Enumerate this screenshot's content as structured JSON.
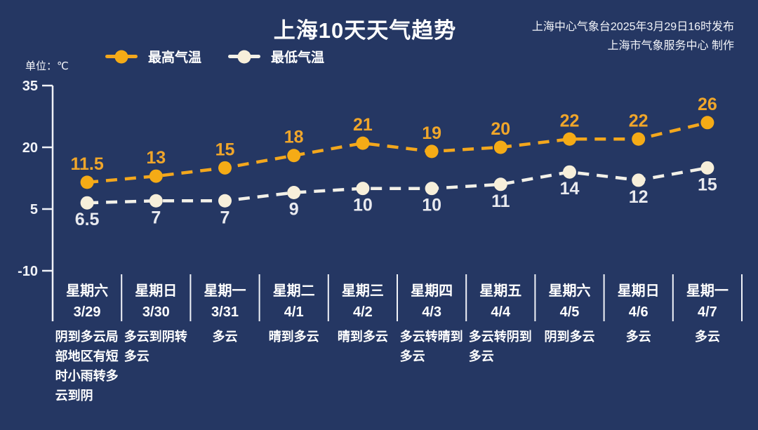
{
  "header": {
    "title": "上海10天天气趋势",
    "issued_line1": "上海中心气象台2025年3月29日16时发布",
    "issued_line2": "上海市气象服务中心 制作",
    "unit_label": "单位：℃"
  },
  "legend": {
    "items": [
      {
        "label": "最高气温",
        "color": "#f3a71d",
        "dot": "#f5ab16"
      },
      {
        "label": "最低气温",
        "color": "#f2f0e8",
        "dot": "#f7efda"
      }
    ]
  },
  "chart_data": {
    "type": "line",
    "title": "上海10天天气趋势",
    "ylabel": "单位：℃",
    "ylim": [
      -10,
      35
    ],
    "yticks": [
      35,
      20,
      5,
      -10
    ],
    "grid": false,
    "legend_position": "top",
    "line_style": "dashed",
    "categories": [
      {
        "day": "星期六",
        "date": "3/29",
        "weather": "阴到多云局部地区有短时小雨转多云到阴"
      },
      {
        "day": "星期日",
        "date": "3/30",
        "weather": "多云到阴转多云"
      },
      {
        "day": "星期一",
        "date": "3/31",
        "weather": "多云"
      },
      {
        "day": "星期二",
        "date": "4/1",
        "weather": "晴到多云"
      },
      {
        "day": "星期三",
        "date": "4/2",
        "weather": "晴到多云"
      },
      {
        "day": "星期四",
        "date": "4/3",
        "weather": "多云转晴到多云"
      },
      {
        "day": "星期五",
        "date": "4/4",
        "weather": "多云转阴到多云"
      },
      {
        "day": "星期六",
        "date": "4/5",
        "weather": "阴到多云"
      },
      {
        "day": "星期日",
        "date": "4/6",
        "weather": "多云"
      },
      {
        "day": "星期一",
        "date": "4/7",
        "weather": "多云"
      }
    ],
    "series": [
      {
        "name": "最高气温",
        "values": [
          11.5,
          13,
          15,
          18,
          21,
          19,
          20,
          22,
          22,
          26
        ],
        "color": "#f3a71d",
        "dot_color": "#f5ab16",
        "label_color": "#f0a62a"
      },
      {
        "name": "最低气温",
        "values": [
          6.5,
          7,
          7,
          9,
          10,
          10,
          11,
          14,
          12,
          15
        ],
        "color": "#f2f0e8",
        "dot_color": "#f7efda",
        "label_color": "#e9eaef"
      }
    ]
  },
  "colors": {
    "background": "#253763",
    "axis": "#f0f2f8",
    "text": "#ffffff"
  }
}
